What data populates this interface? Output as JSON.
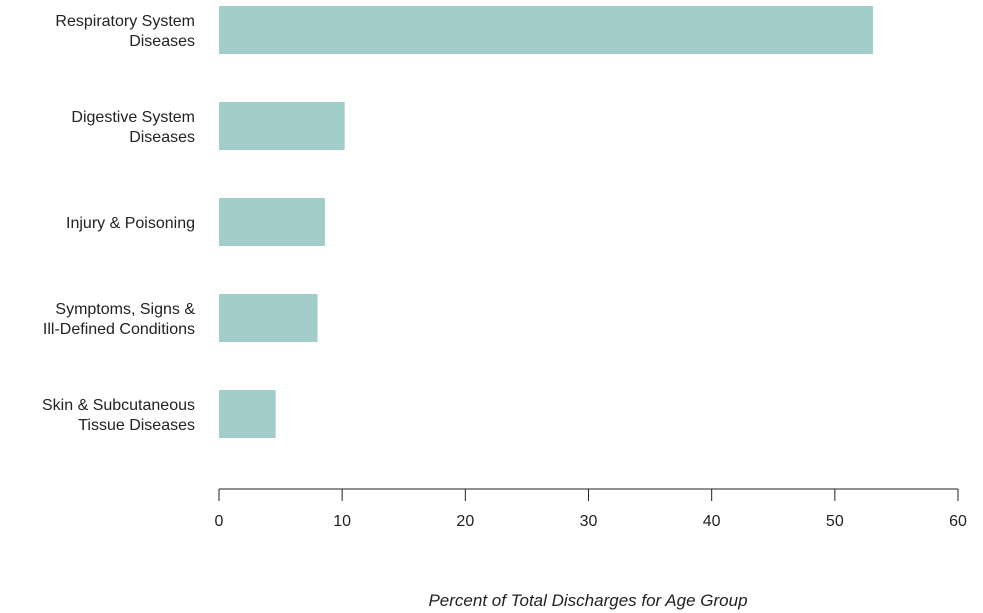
{
  "chart_data": {
    "type": "bar",
    "orientation": "horizontal",
    "categories": [
      [
        "Respiratory System",
        "Diseases"
      ],
      [
        "Digestive System",
        "Diseases"
      ],
      [
        "Injury & Poisoning"
      ],
      [
        "Symptoms, Signs &",
        "Ill-Defined Conditions"
      ],
      [
        "Skin & Subcutaneous",
        "Tissue Diseases"
      ]
    ],
    "values": [
      53.1,
      10.2,
      8.6,
      8.0,
      4.6
    ],
    "xlabel": "Percent of Total Discharges for Age Group",
    "xlim": [
      0,
      60
    ],
    "xticks": [
      0,
      10,
      20,
      30,
      40,
      50,
      60
    ],
    "grid": false,
    "colors": {
      "bar": "#a2cdcb",
      "axis": "#222222"
    }
  }
}
